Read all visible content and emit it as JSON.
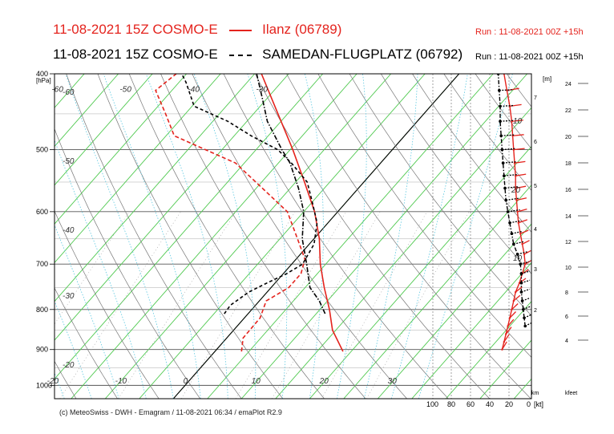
{
  "header": {
    "line1": {
      "label": "11-08-2021 15Z COSMO-E",
      "series": "Ilanz (06789)",
      "run": "Run : 11-08-2021 00Z +15h",
      "color": "#e4231d"
    },
    "line2": {
      "label": "11-08-2021 15Z COSMO-E",
      "series": "SAMEDAN-FLUGPLATZ (06792)",
      "run": "Run : 11-08-2021 00Z +15h",
      "color": "#000000"
    }
  },
  "footer": "(c) MeteoSwiss - DWH - Emagram / 11-08-2021  06:34 / emaPlot R2.9",
  "chart_data": {
    "type": "line",
    "chart_kind": "emagram (skew-T / log-p)",
    "yaxis": {
      "unit": "[hPa]",
      "scale": "log",
      "reversed": true,
      "ylim": [
        1040,
        400
      ],
      "ticks": [
        400,
        500,
        600,
        700,
        800,
        900,
        1000
      ]
    },
    "xaxis": {
      "unit": "°C",
      "skewed": true,
      "isotherm_labels": [
        {
          "t": -60,
          "label": "-60"
        },
        {
          "t": -50,
          "label": "-50"
        },
        {
          "t": -40,
          "label": "-40"
        },
        {
          "t": -30,
          "label": "-30"
        },
        {
          "t": -20,
          "label": "-20"
        },
        {
          "t": -10,
          "label": "-10"
        },
        {
          "t": 0,
          "label": "0"
        },
        {
          "t": 10,
          "label": "10"
        },
        {
          "t": 20,
          "label": "20"
        },
        {
          "t": 30,
          "label": "30"
        }
      ]
    },
    "dry_adiabat_labels": [
      "-60",
      "-50",
      "-40",
      "-30",
      "-20"
    ],
    "height_axis_m": {
      "unit": "[m]",
      "ticks": [
        2,
        3,
        4,
        5,
        6,
        7
      ],
      "bottom_label": "km"
    },
    "height_axis_kfeet": {
      "unit": "kfeet",
      "ticks": [
        4,
        6,
        8,
        10,
        12,
        14,
        16,
        18,
        20,
        22,
        24
      ]
    },
    "wind_axis": {
      "unit": "[kt]",
      "ticks": [
        100,
        80,
        60,
        40,
        20,
        0
      ],
      "inner_labels": [
        "10",
        "20",
        "10"
      ]
    },
    "series": [
      {
        "name": "Ilanz (06789)",
        "color": "#e4231d",
        "temperature": [
          [
            905,
            18.8
          ],
          [
            850,
            14.5
          ],
          [
            800,
            11.4
          ],
          [
            750,
            7.8
          ],
          [
            700,
            4.2
          ],
          [
            650,
            0.8
          ],
          [
            600,
            -3.4
          ],
          [
            550,
            -8.7
          ],
          [
            500,
            -14.6
          ],
          [
            450,
            -21.4
          ],
          [
            400,
            -29.0
          ]
        ],
        "dewpoint": [
          [
            905,
            3.9
          ],
          [
            870,
            2.4
          ],
          [
            820,
            2.3
          ],
          [
            780,
            1.0
          ],
          [
            750,
            2.6
          ],
          [
            720,
            2.6
          ],
          [
            690,
            1.3
          ],
          [
            650,
            -2.4
          ],
          [
            600,
            -7.4
          ],
          [
            560,
            -14.1
          ],
          [
            520,
            -21.3
          ],
          [
            480,
            -33.8
          ],
          [
            450,
            -37.9
          ],
          [
            420,
            -42.4
          ],
          [
            400,
            -41.5
          ]
        ],
        "wind_speed_kt": [
          [
            900,
            28
          ],
          [
            880,
            26
          ],
          [
            860,
            24
          ],
          [
            840,
            22
          ],
          [
            820,
            20
          ],
          [
            800,
            18
          ],
          [
            780,
            16
          ],
          [
            760,
            14
          ],
          [
            740,
            10
          ],
          [
            720,
            7
          ],
          [
            700,
            4
          ],
          [
            680,
            5
          ],
          [
            660,
            7
          ],
          [
            640,
            9
          ],
          [
            620,
            11
          ],
          [
            600,
            12
          ],
          [
            580,
            13
          ],
          [
            560,
            14
          ],
          [
            540,
            14
          ],
          [
            520,
            15
          ],
          [
            500,
            16
          ],
          [
            480,
            17
          ],
          [
            460,
            18
          ],
          [
            440,
            20
          ],
          [
            420,
            23
          ],
          [
            400,
            26
          ]
        ],
        "wind_dir_deg": [
          [
            900,
            200
          ],
          [
            860,
            205
          ],
          [
            820,
            210
          ],
          [
            780,
            215
          ],
          [
            740,
            220
          ],
          [
            700,
            225
          ],
          [
            660,
            230
          ],
          [
            620,
            240
          ],
          [
            580,
            250
          ],
          [
            540,
            255
          ],
          [
            500,
            260
          ],
          [
            460,
            260
          ],
          [
            420,
            255
          ],
          [
            400,
            250
          ]
        ]
      },
      {
        "name": "SAMEDAN-FLUGPLATZ (06792)",
        "color": "#000000",
        "temperature": [
          [
            810,
            11.3
          ],
          [
            780,
            8.8
          ],
          [
            750,
            5.7
          ],
          [
            700,
            2.2
          ],
          [
            650,
            -1.7
          ],
          [
            600,
            -5.0
          ],
          [
            560,
            -8.8
          ],
          [
            520,
            -13.3
          ],
          [
            500,
            -16.2
          ],
          [
            460,
            -22.0
          ],
          [
            430,
            -25.7
          ],
          [
            400,
            -29.7
          ]
        ],
        "dewpoint": [
          [
            810,
            -3.5
          ],
          [
            790,
            -3.7
          ],
          [
            760,
            -2.7
          ],
          [
            740,
            -1.2
          ],
          [
            720,
            0.5
          ],
          [
            700,
            1.6
          ],
          [
            660,
            0.7
          ],
          [
            620,
            -1.6
          ],
          [
            580,
            -5.3
          ],
          [
            550,
            -8.3
          ],
          [
            520,
            -13.1
          ],
          [
            500,
            -16.8
          ],
          [
            480,
            -22.5
          ],
          [
            460,
            -27.8
          ],
          [
            440,
            -34.7
          ],
          [
            410,
            -39.0
          ],
          [
            400,
            -40.7
          ]
        ],
        "wind_speed_kt": [
          [
            840,
            4
          ],
          [
            820,
            5
          ],
          [
            800,
            6
          ],
          [
            780,
            7
          ],
          [
            760,
            8
          ],
          [
            740,
            8
          ],
          [
            720,
            8
          ],
          [
            700,
            9
          ],
          [
            680,
            12
          ],
          [
            660,
            16
          ],
          [
            640,
            18
          ],
          [
            620,
            20
          ],
          [
            600,
            22
          ],
          [
            580,
            24
          ],
          [
            560,
            25
          ],
          [
            540,
            26
          ],
          [
            520,
            27
          ],
          [
            500,
            28
          ],
          [
            480,
            29
          ],
          [
            460,
            30
          ],
          [
            440,
            30
          ],
          [
            420,
            31
          ],
          [
            400,
            32
          ]
        ],
        "wind_dir_deg": [
          [
            840,
            230
          ],
          [
            760,
            240
          ],
          [
            700,
            245
          ],
          [
            650,
            250
          ],
          [
            600,
            255
          ],
          [
            550,
            260
          ],
          [
            500,
            262
          ],
          [
            450,
            265
          ],
          [
            400,
            265
          ]
        ]
      }
    ],
    "grid": true
  }
}
